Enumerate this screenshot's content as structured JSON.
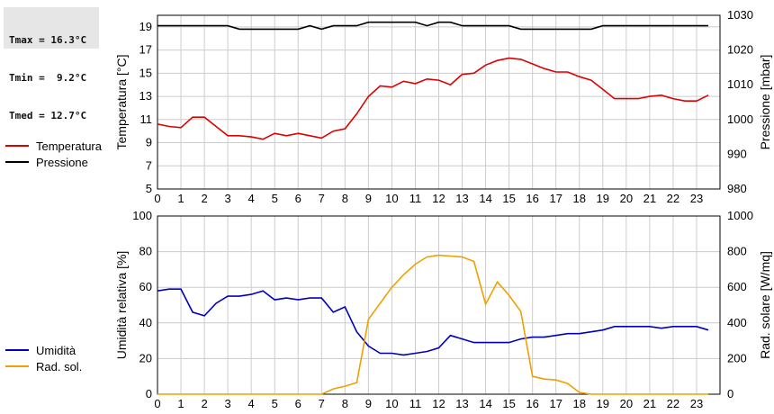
{
  "stats": {
    "tmax": "Tmax = 16.3°C",
    "tmin": "Tmin =  9.2°C",
    "tmed": "Tmed = 12.7°C"
  },
  "colors": {
    "temperature": "#dd0000",
    "pressure": "#000000",
    "humidity": "#0000bb",
    "radiation": "#f0a000",
    "grid": "#cccccc"
  },
  "legend_top": [
    {
      "label": "Temperatura",
      "color": "#dd0000"
    },
    {
      "label": "Pressione",
      "color": "#000000"
    }
  ],
  "legend_bottom": [
    {
      "label": "Umidità",
      "color": "#0000bb"
    },
    {
      "label": "Rad. sol.",
      "color": "#f0a000"
    }
  ],
  "chart_data": [
    {
      "type": "line",
      "ylabel": "Temperatura [°C]",
      "y2label": "Pressione [mbar]",
      "xlim": [
        0,
        24
      ],
      "ylim": [
        5,
        20
      ],
      "y2lim": [
        980,
        1030
      ],
      "x_ticks": [
        0,
        1,
        2,
        3,
        4,
        5,
        6,
        7,
        8,
        9,
        10,
        11,
        12,
        13,
        14,
        15,
        16,
        17,
        18,
        19,
        20,
        21,
        22,
        23
      ],
      "y_ticks": [
        5,
        7,
        9,
        11,
        13,
        15,
        17,
        19
      ],
      "y2_ticks": [
        980,
        990,
        1000,
        1010,
        1020,
        1030
      ],
      "grid": true,
      "series": [
        {
          "name": "Temperatura",
          "axis": "left",
          "color": "#dd0000",
          "x": [
            0,
            0.5,
            1,
            1.5,
            2,
            2.5,
            3,
            3.5,
            4,
            4.5,
            5,
            5.5,
            6,
            6.5,
            7,
            7.5,
            8,
            8.5,
            9,
            9.5,
            10,
            10.5,
            11,
            11.5,
            12,
            12.5,
            13,
            13.5,
            14,
            14.5,
            15,
            15.5,
            16,
            16.5,
            17,
            17.5,
            18,
            18.5,
            19,
            19.5,
            20,
            20.5,
            21,
            21.5,
            22,
            22.5,
            23,
            23.5
          ],
          "y": [
            10.6,
            10.4,
            10.3,
            11.2,
            11.2,
            10.4,
            9.6,
            9.6,
            9.5,
            9.3,
            9.8,
            9.6,
            9.8,
            9.6,
            9.4,
            10.0,
            10.2,
            11.5,
            13.0,
            13.9,
            13.8,
            14.3,
            14.1,
            14.5,
            14.4,
            14.0,
            14.9,
            15.0,
            15.7,
            16.1,
            16.3,
            16.2,
            15.8,
            15.4,
            15.1,
            15.1,
            14.7,
            14.4,
            13.6,
            12.8,
            12.8,
            12.8,
            13.0,
            13.1,
            12.8,
            12.6,
            12.6,
            13.1
          ]
        },
        {
          "name": "Pressione",
          "axis": "right",
          "color": "#000000",
          "x": [
            0,
            0.5,
            1,
            1.5,
            2,
            2.5,
            3,
            3.5,
            4,
            4.5,
            5,
            5.5,
            6,
            6.5,
            7,
            7.5,
            8,
            8.5,
            9,
            9.5,
            10,
            10.5,
            11,
            11.5,
            12,
            12.5,
            13,
            13.5,
            14,
            14.5,
            15,
            15.5,
            16,
            16.5,
            17,
            17.5,
            18,
            18.5,
            19,
            19.5,
            20,
            20.5,
            21,
            21.5,
            22,
            22.5,
            23,
            23.5
          ],
          "y": [
            1027,
            1027,
            1027,
            1027,
            1027,
            1027,
            1027,
            1026,
            1026,
            1026,
            1026,
            1026,
            1026,
            1027,
            1026,
            1027,
            1027,
            1027,
            1028,
            1028,
            1028,
            1028,
            1028,
            1027,
            1028,
            1028,
            1027,
            1027,
            1027,
            1027,
            1027,
            1026,
            1026,
            1026,
            1026,
            1026,
            1026,
            1026,
            1027,
            1027,
            1027,
            1027,
            1027,
            1027,
            1027,
            1027,
            1027,
            1027
          ]
        }
      ]
    },
    {
      "type": "line",
      "ylabel": "Umidità relativa [%]",
      "y2label": "Rad. solare [W/mq]",
      "xlim": [
        0,
        24
      ],
      "ylim": [
        0,
        100
      ],
      "y2lim": [
        0,
        1000
      ],
      "x_ticks": [
        0,
        1,
        2,
        3,
        4,
        5,
        6,
        7,
        8,
        9,
        10,
        11,
        12,
        13,
        14,
        15,
        16,
        17,
        18,
        19,
        20,
        21,
        22,
        23
      ],
      "y_ticks": [
        0,
        20,
        40,
        60,
        80,
        100
      ],
      "y2_ticks": [
        0,
        200,
        400,
        600,
        800,
        1000
      ],
      "grid": true,
      "series": [
        {
          "name": "Umidità",
          "axis": "left",
          "color": "#0000bb",
          "x": [
            0,
            0.5,
            1,
            1.5,
            2,
            2.5,
            3,
            3.5,
            4,
            4.5,
            5,
            5.5,
            6,
            6.5,
            7,
            7.5,
            8,
            8.5,
            9,
            9.5,
            10,
            10.5,
            11,
            11.5,
            12,
            12.5,
            13,
            13.5,
            14,
            14.5,
            15,
            15.5,
            16,
            16.5,
            17,
            17.5,
            18,
            18.5,
            19,
            19.5,
            20,
            20.5,
            21,
            21.5,
            22,
            22.5,
            23,
            23.5
          ],
          "y": [
            58,
            59,
            59,
            46,
            44,
            51,
            55,
            55,
            56,
            58,
            53,
            54,
            53,
            54,
            54,
            46,
            49,
            35,
            27,
            23,
            23,
            22,
            23,
            24,
            26,
            33,
            31,
            29,
            29,
            29,
            29,
            31,
            32,
            32,
            33,
            34,
            34,
            35,
            36,
            38,
            38,
            38,
            38,
            37,
            38,
            38,
            38,
            36
          ]
        },
        {
          "name": "Rad. sol.",
          "axis": "right",
          "color": "#f0a000",
          "x": [
            0,
            1,
            2,
            3,
            4,
            5,
            6,
            7,
            7.5,
            8,
            8.5,
            9,
            9.5,
            10,
            10.5,
            11,
            11.5,
            12,
            12.5,
            13,
            13.5,
            14,
            14.5,
            15,
            15.5,
            16,
            16.5,
            17,
            17.5,
            18,
            18.5,
            19,
            20,
            21,
            22,
            23,
            23.5
          ],
          "y": [
            0,
            0,
            0,
            0,
            0,
            0,
            0,
            0,
            30,
            45,
            65,
            420,
            510,
            600,
            670,
            730,
            770,
            780,
            775,
            770,
            745,
            505,
            630,
            555,
            465,
            100,
            85,
            80,
            60,
            10,
            0,
            0,
            0,
            0,
            0,
            0,
            0
          ]
        }
      ]
    }
  ]
}
